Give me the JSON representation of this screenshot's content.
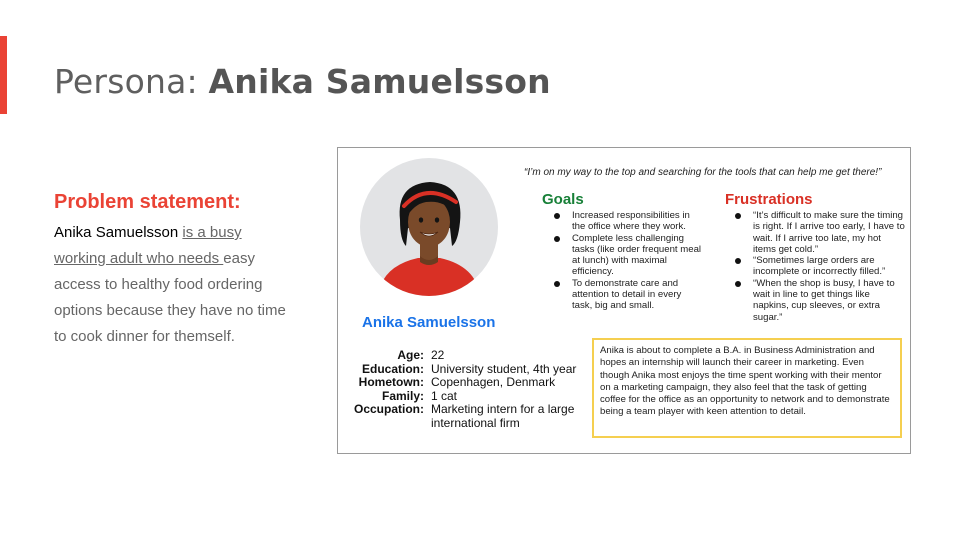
{
  "colors": {
    "accent": "#ea4335",
    "persona_name": "#1a73e8",
    "goals_heading": "#188038",
    "frustrations_heading": "#d93025",
    "bio_border": "#f5cf50"
  },
  "slide": {
    "title_prefix": "Persona: ",
    "title_name": "Anika Samuelsson"
  },
  "problem": {
    "heading": "Problem statement:",
    "name": "Anika Samuelsson",
    "underlined_1": "is a busy",
    "underlined_2": "working adult who needs ",
    "rest": "easy access to healthy food ordering options because they have no time to cook dinner for themself."
  },
  "card": {
    "persona_name": "Anika Samuelsson",
    "quote": "“I’m on my way to the top and searching for the tools that can help me get there!”",
    "facts": [
      {
        "label": "Age:",
        "value": "22"
      },
      {
        "label": "Education:",
        "value": "University student, 4th year"
      },
      {
        "label": "Hometown:",
        "value": "Copenhagen, Denmark"
      },
      {
        "label": "Family:",
        "value": "1 cat"
      },
      {
        "label": "Occupation:",
        "value": "Marketing intern for a large international firm"
      }
    ],
    "goals_heading": "Goals",
    "goals": [
      "Increased responsibilities in the office where they work.",
      "Complete less challenging tasks (like order frequent meal at lunch) with maximal efficiency.",
      "To demonstrate care and attention to detail in every task, big and small."
    ],
    "frustrations_heading": "Frustrations",
    "frustrations": [
      "“It’s difficult to make sure the timing is right. If I arrive too early, I have to wait. If I arrive too late, my hot items get cold.”",
      "“Sometimes large orders are incomplete or incorrectly filled.”",
      "“When the shop is busy, I have to wait in line to get things like napkins, cup sleeves, or extra sugar.”"
    ],
    "bio": "Anika is about to complete a B.A. in Business Administration and hopes an internship will launch their career in marketing. Even though Anika most enjoys the time spent working with their mentor on a marketing campaign, they also feel that the task of getting coffee for the office as an opportunity to network and to demonstrate being a team player with keen attention to detail."
  }
}
